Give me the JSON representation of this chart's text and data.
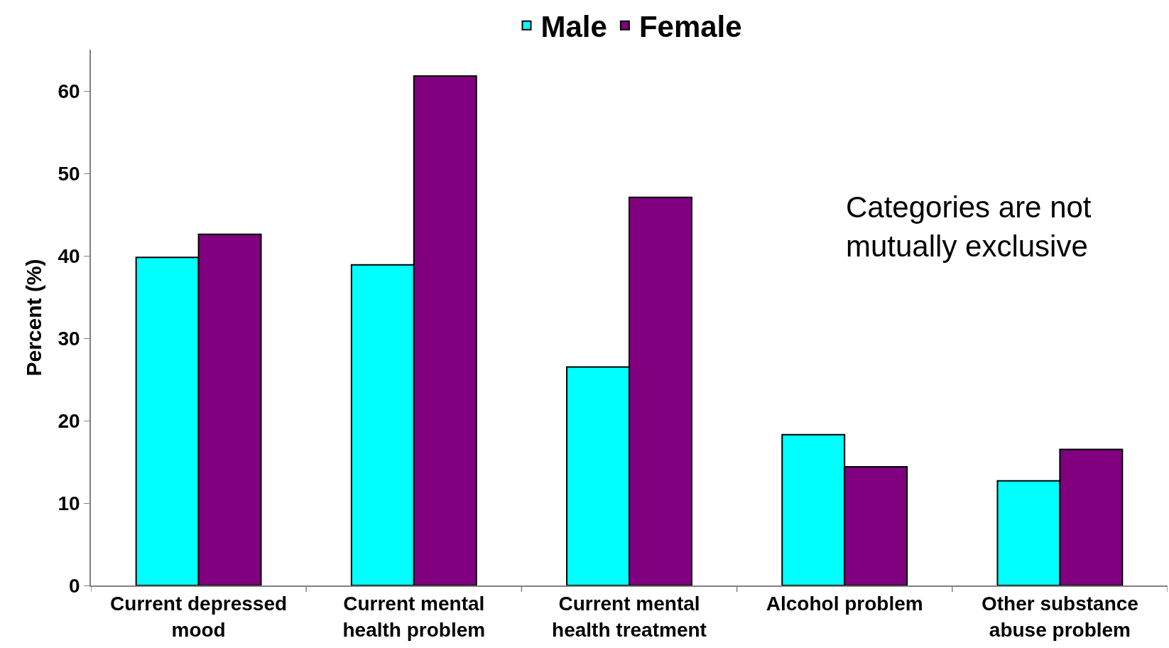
{
  "chart_data": {
    "type": "bar",
    "ylabel": "Percent (%)",
    "categories": [
      "Current depressed mood",
      "Current mental health problem",
      "Current mental health treatment",
      "Alcohol problem",
      "Other substance abuse problem"
    ],
    "series": [
      {
        "name": "Male",
        "color": "#00ffff",
        "values": [
          39.8,
          38.9,
          26.5,
          18.3,
          12.7
        ]
      },
      {
        "name": "Female",
        "color": "#800080",
        "values": [
          42.6,
          61.8,
          47.1,
          14.4,
          16.5
        ]
      }
    ],
    "ylim": [
      0,
      65
    ],
    "yticks": [
      0,
      10,
      20,
      30,
      40,
      50,
      60
    ],
    "legend": "top",
    "annotations": [
      "Categories are not mutually exclusive"
    ]
  }
}
